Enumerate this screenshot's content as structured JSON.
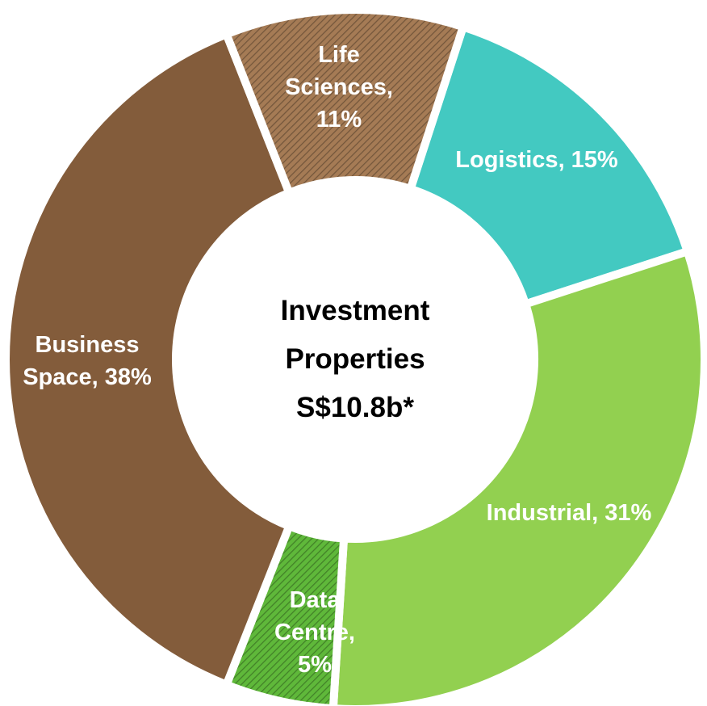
{
  "chart_data": {
    "type": "donut",
    "labels": [
      "Logistics, 15%",
      "Industrial, 31%",
      "Data Centre, 5%",
      "Business Space, 38%",
      "Life Sciences, 11%"
    ],
    "values": [
      15,
      31,
      5,
      38,
      11
    ],
    "colors": [
      "#43c9c1",
      "#92d050",
      "#5fb83a",
      "#835c3b",
      "#a57b55"
    ],
    "hatched": [
      false,
      false,
      true,
      false,
      true
    ],
    "center_label": "Investment Properties S$10.8b*"
  }
}
